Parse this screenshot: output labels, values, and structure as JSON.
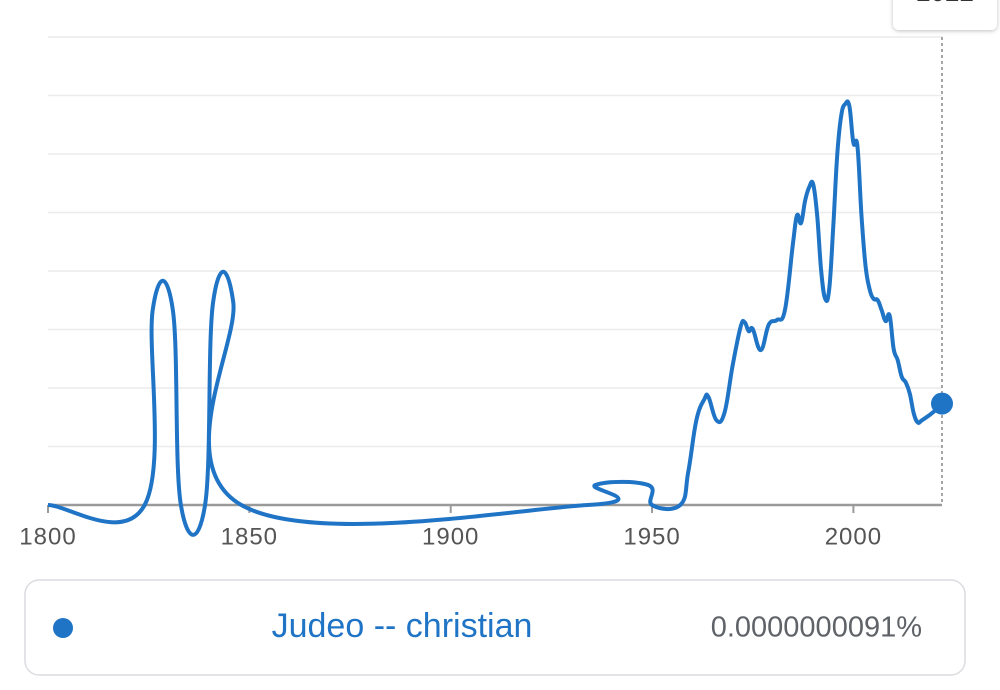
{
  "chart_data": {
    "type": "line",
    "xlim": [
      1800,
      2022
    ],
    "xticks": [
      1800,
      1850,
      1900,
      1950,
      2000
    ],
    "ylim": [
      0,
      4.2e-08
    ],
    "yticks": [
      0,
      5.25e-09,
      1.05e-08,
      1.575e-08,
      2.1e-08,
      2.625e-08,
      3.15e-08,
      3.675e-08,
      4.2e-08
    ],
    "show_ytick_labels": false,
    "grid": true,
    "series": [
      {
        "name": "Judeo -- christian",
        "color": "#1f74c6",
        "x": [
          1800,
          1824,
          1826,
          1831,
          1833,
          1839,
          1841,
          1846,
          1848,
          1934,
          1936,
          1949,
          1950,
          1957,
          1959,
          1961,
          1963,
          1964,
          1966,
          1968,
          1970,
          1972,
          1973,
          1974,
          1975,
          1977,
          1979,
          1981,
          1983,
          1985,
          1986,
          1987,
          1988,
          1989,
          1990,
          1991,
          1992,
          1993,
          1994,
          1995,
          1996,
          1997,
          1998,
          1999,
          2000,
          2001,
          2002,
          2003,
          2004,
          2005,
          2006,
          2007,
          2008,
          2009,
          2010,
          2011,
          2012,
          2013,
          2014,
          2015,
          2016,
          2017,
          2019,
          2021,
          2022
        ],
        "values": [
          0,
          0,
          1.75e-08,
          1.75e-08,
          0,
          0,
          1.82e-08,
          1.82e-08,
          0,
          0,
          1.8e-09,
          1.8e-09,
          0,
          0,
          3e-09,
          7.6e-09,
          9.5e-09,
          9.7e-09,
          7.6e-09,
          8.3e-09,
          1.25e-08,
          1.6e-08,
          1.64e-08,
          1.56e-08,
          1.58e-08,
          1.39e-08,
          1.62e-08,
          1.66e-08,
          1.75e-08,
          2.35e-08,
          2.6e-08,
          2.53e-08,
          2.73e-08,
          2.85e-08,
          2.88e-08,
          2.6e-08,
          2.1e-08,
          1.85e-08,
          1.94e-08,
          2.5e-08,
          3.15e-08,
          3.5e-08,
          3.6e-08,
          3.58e-08,
          3.25e-08,
          3.22e-08,
          2.6e-08,
          2.15e-08,
          1.94e-08,
          1.85e-08,
          1.84e-08,
          1.75e-08,
          1.65e-08,
          1.7e-08,
          1.4e-08,
          1.3e-08,
          1.15e-08,
          1.1e-08,
          1e-08,
          8.2e-09,
          7.4e-09,
          7.6e-09,
          8.1e-09,
          8.7e-09,
          9.1e-09
        ]
      }
    ],
    "hover": {
      "x": 2022,
      "value": 9.1e-09,
      "value_label": "0.0000000091%"
    }
  }
}
